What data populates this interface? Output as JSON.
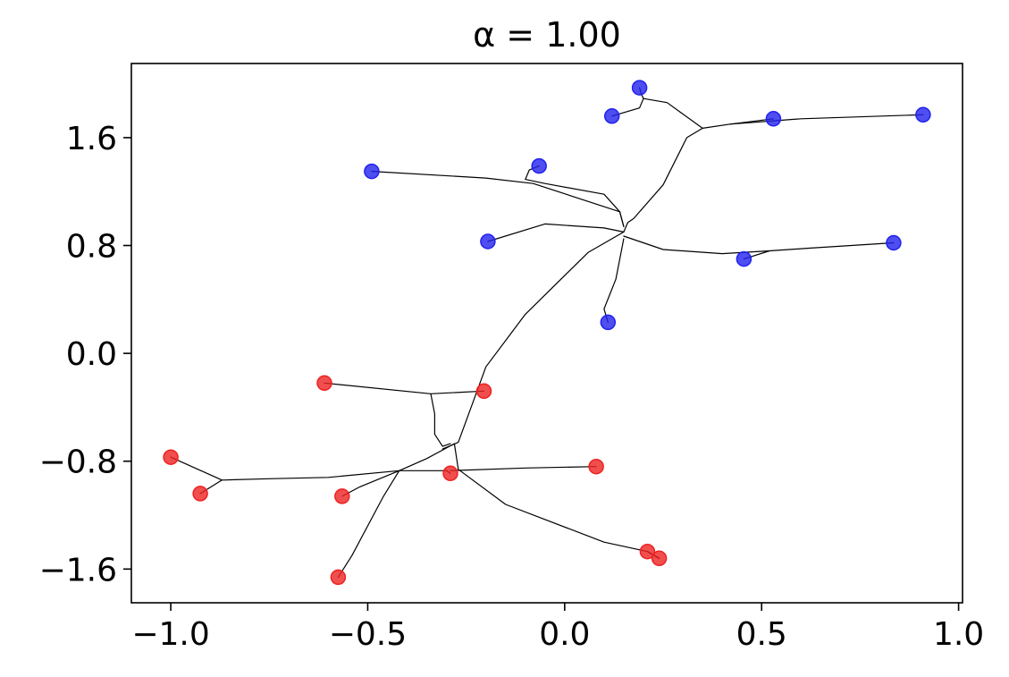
{
  "chart_data": {
    "type": "scatter",
    "title": "α = 1.00",
    "xlabel": "",
    "ylabel": "",
    "xlim": [
      -1.1,
      1.01
    ],
    "ylim": [
      -1.85,
      2.15
    ],
    "xticks": [
      -1.0,
      -0.5,
      0.0,
      0.5,
      1.0
    ],
    "xtick_labels": [
      "−1.0",
      "−0.5",
      "0.0",
      "0.5",
      "1.0"
    ],
    "yticks": [
      -1.6,
      -0.8,
      0.0,
      0.8,
      1.6
    ],
    "ytick_labels": [
      "−1.6",
      "−0.8",
      "0.0",
      "0.8",
      "1.6"
    ],
    "grid": false,
    "series": [
      {
        "color": "#2222ee",
        "points": [
          {
            "x": 0.19,
            "y": 1.97
          },
          {
            "x": 0.12,
            "y": 1.76
          },
          {
            "x": 0.53,
            "y": 1.74
          },
          {
            "x": 0.91,
            "y": 1.77
          },
          {
            "x": -0.065,
            "y": 1.39
          },
          {
            "x": -0.49,
            "y": 1.35
          },
          {
            "x": -0.195,
            "y": 0.83
          },
          {
            "x": 0.455,
            "y": 0.7
          },
          {
            "x": 0.835,
            "y": 0.82
          },
          {
            "x": 0.11,
            "y": 0.23
          }
        ]
      },
      {
        "color": "#ee2222",
        "points": [
          {
            "x": -0.61,
            "y": -0.22
          },
          {
            "x": -0.205,
            "y": -0.28
          },
          {
            "x": -1.0,
            "y": -0.77
          },
          {
            "x": -0.925,
            "y": -1.04
          },
          {
            "x": -0.565,
            "y": -1.06
          },
          {
            "x": -0.29,
            "y": -0.89
          },
          {
            "x": 0.08,
            "y": -0.84
          },
          {
            "x": 0.21,
            "y": -1.47
          },
          {
            "x": 0.24,
            "y": -1.52
          },
          {
            "x": -0.575,
            "y": -1.66
          }
        ]
      }
    ],
    "edge_color": "#000000",
    "tree_edges": [
      [
        [
          0.19,
          1.97
        ],
        [
          0.195,
          1.92
        ],
        [
          0.2,
          1.89
        ],
        [
          0.26,
          1.86
        ],
        [
          0.35,
          1.67
        ]
      ],
      [
        [
          0.12,
          1.76
        ],
        [
          0.19,
          1.82
        ],
        [
          0.2,
          1.89
        ]
      ],
      [
        [
          0.91,
          1.77
        ],
        [
          0.6,
          1.74
        ],
        [
          0.42,
          1.7
        ],
        [
          0.35,
          1.67
        ]
      ],
      [
        [
          0.53,
          1.74
        ],
        [
          0.42,
          1.7
        ]
      ],
      [
        [
          0.35,
          1.67
        ],
        [
          0.31,
          1.6
        ],
        [
          0.25,
          1.25
        ],
        [
          0.175,
          1.0
        ],
        [
          0.16,
          0.97
        ],
        [
          0.15,
          0.9
        ]
      ],
      [
        [
          -0.065,
          1.39
        ],
        [
          -0.09,
          1.36
        ],
        [
          -0.1,
          1.29
        ],
        [
          -0.05,
          1.26
        ],
        [
          0.1,
          1.18
        ],
        [
          0.14,
          1.05
        ],
        [
          0.15,
          0.94
        ]
      ],
      [
        [
          -0.49,
          1.35
        ],
        [
          -0.2,
          1.3
        ],
        [
          -0.08,
          1.26
        ],
        [
          0.14,
          1.05
        ],
        [
          0.15,
          0.94
        ]
      ],
      [
        [
          -0.195,
          0.83
        ],
        [
          -0.05,
          0.96
        ],
        [
          0.1,
          0.93
        ],
        [
          0.15,
          0.9
        ]
      ],
      [
        [
          0.835,
          0.82
        ],
        [
          0.62,
          0.78
        ],
        [
          0.52,
          0.76
        ],
        [
          0.455,
          0.7
        ]
      ],
      [
        [
          0.52,
          0.76
        ],
        [
          0.4,
          0.74
        ],
        [
          0.25,
          0.77
        ],
        [
          0.15,
          0.87
        ]
      ],
      [
        [
          0.11,
          0.23
        ],
        [
          0.1,
          0.33
        ],
        [
          0.13,
          0.55
        ],
        [
          0.15,
          0.85
        ]
      ],
      [
        [
          0.15,
          0.9
        ],
        [
          0.06,
          0.75
        ],
        [
          -0.1,
          0.29
        ],
        [
          -0.2,
          -0.1
        ],
        [
          -0.27,
          -0.66
        ],
        [
          -0.31,
          -0.71
        ]
      ],
      [
        [
          -0.61,
          -0.22
        ],
        [
          -0.34,
          -0.3
        ],
        [
          -0.205,
          -0.28
        ]
      ],
      [
        [
          -0.34,
          -0.3
        ],
        [
          -0.33,
          -0.45
        ],
        [
          -0.33,
          -0.6
        ],
        [
          -0.31,
          -0.69
        ],
        [
          -0.29,
          -0.67
        ]
      ],
      [
        [
          -1.0,
          -0.77
        ],
        [
          -0.87,
          -0.94
        ],
        [
          -0.75,
          -0.93
        ],
        [
          -0.6,
          -0.92
        ],
        [
          -0.42,
          -0.87
        ],
        [
          -0.35,
          -0.78
        ],
        [
          -0.28,
          -0.67
        ]
      ],
      [
        [
          -0.925,
          -1.04
        ],
        [
          -0.87,
          -0.94
        ]
      ],
      [
        [
          -0.565,
          -1.06
        ],
        [
          -0.52,
          -0.99
        ],
        [
          -0.42,
          -0.87
        ]
      ],
      [
        [
          -0.29,
          -0.89
        ],
        [
          -0.3,
          -0.87
        ],
        [
          -0.42,
          -0.87
        ]
      ],
      [
        [
          0.08,
          -0.84
        ],
        [
          -0.1,
          -0.85
        ],
        [
          -0.29,
          -0.87
        ]
      ],
      [
        [
          -0.575,
          -1.66
        ],
        [
          -0.54,
          -1.5
        ],
        [
          -0.46,
          -1.06
        ],
        [
          -0.42,
          -0.87
        ]
      ],
      [
        [
          0.24,
          -1.52
        ],
        [
          0.21,
          -1.47
        ],
        [
          0.1,
          -1.4
        ],
        [
          -0.15,
          -1.12
        ],
        [
          -0.27,
          -0.86
        ],
        [
          -0.28,
          -0.67
        ]
      ],
      [
        [
          0.21,
          -1.47
        ],
        [
          0.24,
          -1.52
        ]
      ]
    ]
  }
}
